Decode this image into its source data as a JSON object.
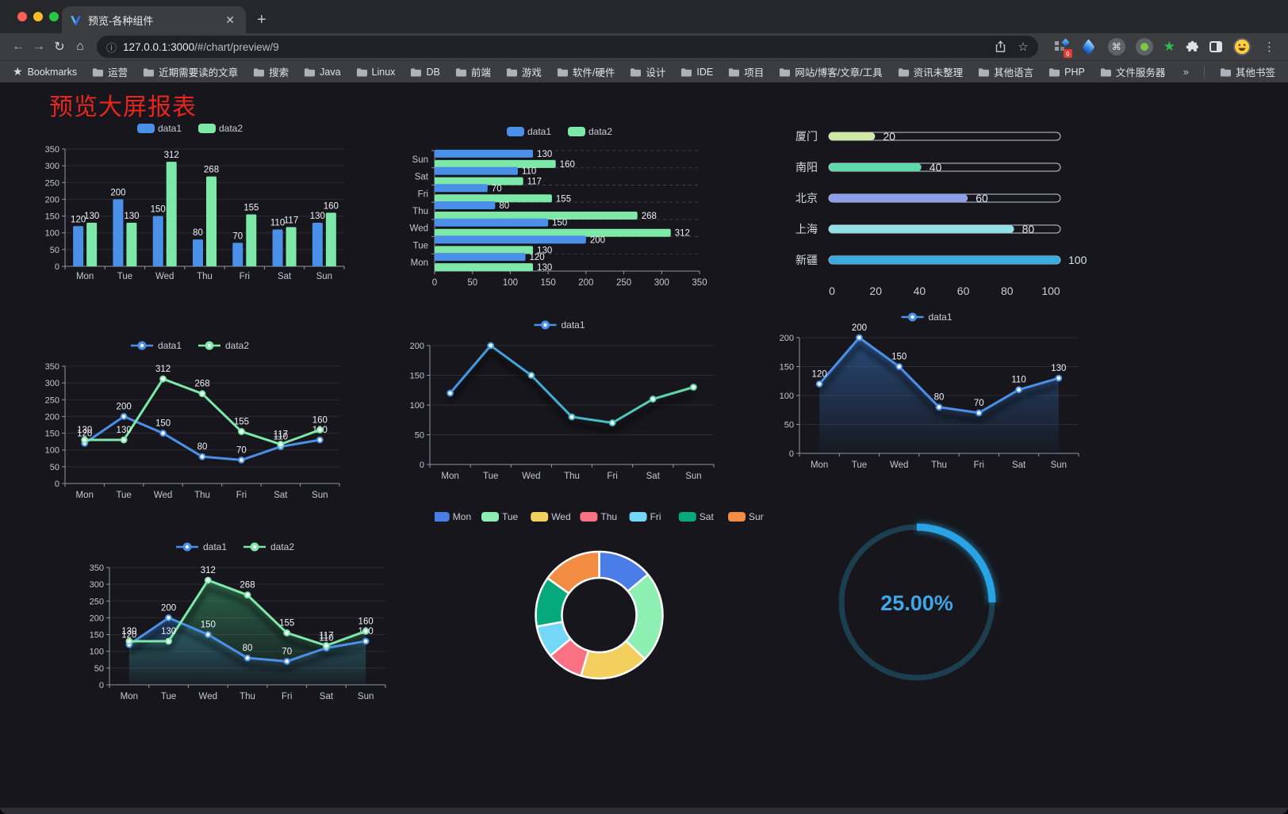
{
  "browser": {
    "tab": {
      "title": "预览-各种组件"
    },
    "url": {
      "host": "127.0.0.1:3000",
      "path": "/#/chart/preview/9"
    },
    "extensions": {
      "badge": "9"
    },
    "bookmarks": {
      "label": "Bookmarks",
      "folders": [
        "运营",
        "近期需要读的文章",
        "搜索",
        "Java",
        "Linux",
        "DB",
        "前端",
        "游戏",
        "软件/硬件",
        "设计",
        "IDE",
        "项目",
        "网站/博客/文章/工具",
        "资讯未整理",
        "其他语言",
        "PHP",
        "文件服务器"
      ],
      "overflow": "»",
      "other": "其他书签"
    }
  },
  "page": {
    "title": "预览大屏报表",
    "title_color": "#e8261d",
    "background": "#16161c"
  },
  "chart_data": [
    {
      "id": "grouped-bar",
      "type": "bar",
      "categories": [
        "Mon",
        "Tue",
        "Wed",
        "Thu",
        "Fri",
        "Sat",
        "Sun"
      ],
      "series": [
        {
          "name": "data1",
          "color": "#4a90e8",
          "values": [
            120,
            200,
            150,
            80,
            70,
            110,
            130
          ]
        },
        {
          "name": "data2",
          "color": "#7ee8a9",
          "values": [
            130,
            130,
            312,
            268,
            155,
            117,
            160
          ]
        }
      ],
      "ylim": [
        0,
        350
      ],
      "ytick": 50,
      "labels": true,
      "legend": true,
      "grid": true
    },
    {
      "id": "grouped-hbar",
      "type": "hbar",
      "categories": [
        "Mon",
        "Tue",
        "Wed",
        "Thu",
        "Fri",
        "Sat",
        "Sun"
      ],
      "series": [
        {
          "name": "data1",
          "color": "#4a90e8",
          "values": [
            120,
            200,
            150,
            80,
            70,
            110,
            130
          ]
        },
        {
          "name": "data2",
          "color": "#7ee8a9",
          "values": [
            130,
            130,
            312,
            268,
            155,
            117,
            160
          ]
        }
      ],
      "xlim": [
        0,
        350
      ],
      "xtick": 50,
      "labels": true,
      "legend": true
    },
    {
      "id": "city-progress",
      "type": "progress",
      "max": 100,
      "items": [
        {
          "label": "厦门",
          "value": 20,
          "color": "#cfe9a2"
        },
        {
          "label": "南阳",
          "value": 40,
          "color": "#5fd9ac"
        },
        {
          "label": "北京",
          "value": 60,
          "color": "#8f9ee8"
        },
        {
          "label": "上海",
          "value": 80,
          "color": "#93dfe8"
        },
        {
          "label": "新疆",
          "value": 100,
          "color": "#38ace0"
        }
      ],
      "ticks": [
        0,
        20,
        40,
        60,
        80,
        100
      ]
    },
    {
      "id": "two-line",
      "type": "line",
      "categories": [
        "Mon",
        "Tue",
        "Wed",
        "Thu",
        "Fri",
        "Sat",
        "Sun"
      ],
      "series": [
        {
          "name": "data1",
          "color": "#4a90e8",
          "values": [
            120,
            200,
            150,
            80,
            70,
            110,
            130
          ]
        },
        {
          "name": "data2",
          "color": "#7ee8a9",
          "values": [
            130,
            130,
            312,
            268,
            155,
            117,
            160
          ]
        }
      ],
      "ylim": [
        0,
        350
      ],
      "ytick": 50,
      "labels": true,
      "legend": true,
      "shadow": false
    },
    {
      "id": "gradient-line",
      "type": "line",
      "categories": [
        "Mon",
        "Tue",
        "Wed",
        "Thu",
        "Fri",
        "Sat",
        "Sun"
      ],
      "series": [
        {
          "name": "data1",
          "color": "#4a90e8",
          "gradient": [
            "#3e8ee8",
            "#44b4cc",
            "#68e2a2"
          ],
          "values": [
            120,
            200,
            150,
            80,
            70,
            110,
            130
          ]
        }
      ],
      "ylim": [
        0,
        200
      ],
      "ytick": 50,
      "labels": false,
      "legend": true,
      "shadow": true
    },
    {
      "id": "area-line",
      "type": "line",
      "categories": [
        "Mon",
        "Tue",
        "Wed",
        "Thu",
        "Fri",
        "Sat",
        "Sun"
      ],
      "series": [
        {
          "name": "data1",
          "color": "#4a90e8",
          "area": [
            "rgba(52,108,182,0.60)",
            "rgba(52,108,182,0.03)"
          ],
          "values": [
            120,
            200,
            150,
            80,
            70,
            110,
            130
          ]
        }
      ],
      "ylim": [
        0,
        200
      ],
      "ytick": 50,
      "labels": true,
      "legend": true,
      "shadow": true
    },
    {
      "id": "two-area-line",
      "type": "line",
      "categories": [
        "Mon",
        "Tue",
        "Wed",
        "Thu",
        "Fri",
        "Sat",
        "Sun"
      ],
      "series": [
        {
          "name": "data1",
          "color": "#4a90e8",
          "area": [
            "rgba(52,108,182,0.55)",
            "rgba(52,108,182,0.03)"
          ],
          "values": [
            120,
            200,
            150,
            80,
            70,
            110,
            130
          ]
        },
        {
          "name": "data2",
          "color": "#7ee8a9",
          "area": [
            "rgba(56,150,104,0.60)",
            "rgba(56,150,104,0.04)"
          ],
          "values": [
            130,
            130,
            312,
            268,
            155,
            117,
            160
          ]
        }
      ],
      "ylim": [
        0,
        350
      ],
      "ytick": 50,
      "labels": true,
      "legend": true,
      "shadow": true
    },
    {
      "id": "week-donut",
      "type": "donut",
      "items": [
        {
          "label": "Mon",
          "value": 120,
          "color": "#4a7de8"
        },
        {
          "label": "Tue",
          "value": 200,
          "color": "#8df0b2"
        },
        {
          "label": "Wed",
          "value": 150,
          "color": "#f3d05e"
        },
        {
          "label": "Thu",
          "value": 80,
          "color": "#fa7183"
        },
        {
          "label": "Fri",
          "value": 70,
          "color": "#74d7f7"
        },
        {
          "label": "Sat",
          "value": 110,
          "color": "#06a97c"
        },
        {
          "label": "Sun",
          "value": 130,
          "color": "#f28c42"
        }
      ]
    },
    {
      "id": "percent-gauge",
      "type": "gauge",
      "value_text": "25.00%",
      "percent": 25,
      "color": "#29a3e3",
      "track_color": "#1c3f50",
      "text_color": "#3fa6e8"
    }
  ]
}
